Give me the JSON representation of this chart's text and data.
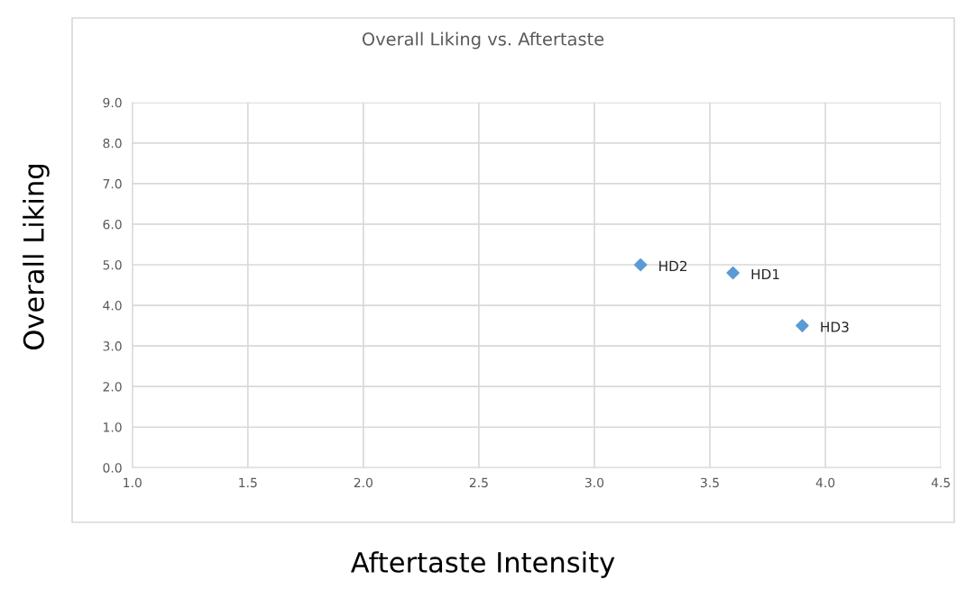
{
  "chart_data": {
    "type": "scatter",
    "title": "Overall Liking vs. Aftertaste",
    "xlabel": "Aftertaste Intensity",
    "ylabel": "Overall Liking",
    "series": [
      {
        "color": "#5b9bd5",
        "x": [
          3.6,
          3.2,
          3.9
        ],
        "values": [
          4.8,
          5.0,
          3.5
        ]
      }
    ],
    "annotations": [
      {
        "text": "HD1",
        "x": 3.6,
        "y": 4.8
      },
      {
        "text": "HD2",
        "x": 3.2,
        "y": 5.0
      },
      {
        "text": "HD3",
        "x": 3.9,
        "y": 3.5
      }
    ],
    "marker": "diamond",
    "grid": true,
    "xlim": [
      1.0,
      4.5
    ],
    "xticks": [
      {
        "value": 1,
        "label": "1.0"
      },
      1.5,
      {
        "value": 2,
        "label": "2.0"
      },
      2.5,
      {
        "value": 3,
        "label": "3.0"
      },
      3.5,
      {
        "value": 4,
        "label": "4.0"
      },
      4.5
    ],
    "ylim": [
      0,
      9
    ],
    "yticks": [
      {
        "value": 0,
        "label": "0.0"
      },
      {
        "value": 1,
        "label": "1.0"
      },
      {
        "value": 2,
        "label": "2.0"
      },
      {
        "value": 3,
        "label": "3.0"
      },
      {
        "value": 4,
        "label": "4.0"
      },
      {
        "value": 5,
        "label": "5.0"
      },
      {
        "value": 6,
        "label": "6.0"
      },
      {
        "value": 7,
        "label": "7.0"
      },
      {
        "value": 8,
        "label": "8.0"
      },
      {
        "value": 9,
        "label": "9.0"
      }
    ]
  }
}
